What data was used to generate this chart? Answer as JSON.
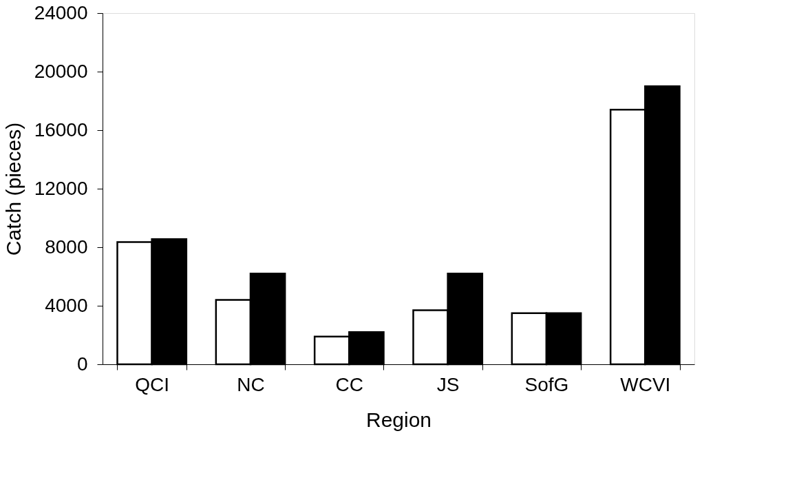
{
  "chart_data": {
    "type": "bar",
    "xlabel": "Region",
    "ylabel": "Catch (pieces)",
    "categories": [
      "QCI",
      "NC",
      "CC",
      "JS",
      "SofG",
      "WCVI"
    ],
    "series": [
      {
        "color": "#ffffff",
        "values": [
          8350,
          4400,
          1900,
          3700,
          3500,
          17400
        ]
      },
      {
        "color": "#000000",
        "values": [
          8550,
          6200,
          2200,
          6200,
          3500,
          19000
        ]
      }
    ],
    "ylim": [
      0,
      24000
    ],
    "yticks": [
      0,
      4000,
      8000,
      12000,
      16000,
      20000,
      24000
    ],
    "grid": false,
    "legend": false
  }
}
